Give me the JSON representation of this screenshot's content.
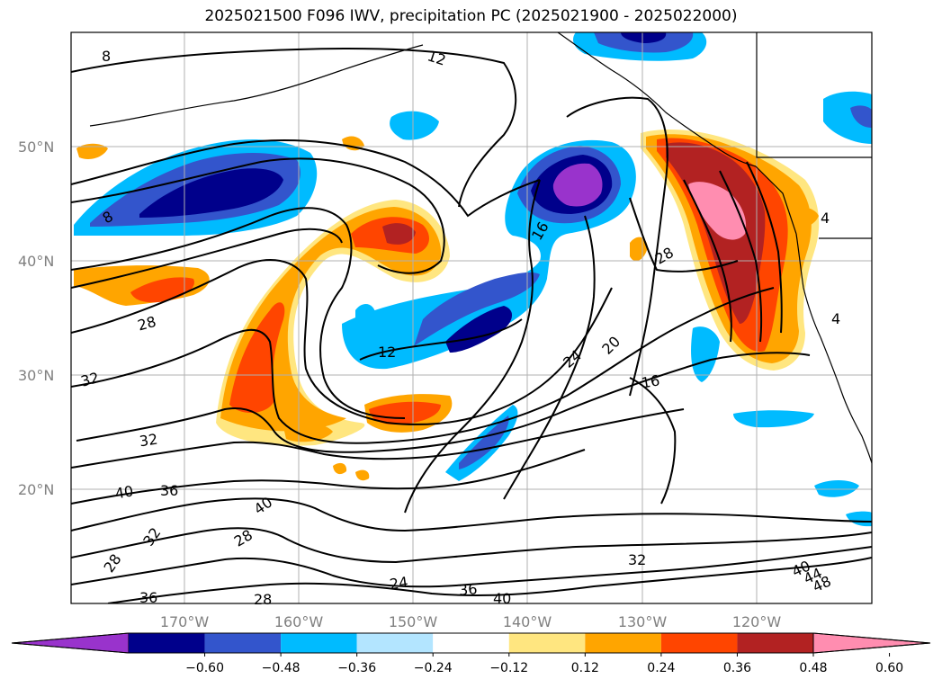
{
  "title": "2025021500 F096 IWV, precipitation PC (2025021900 - 2025022000)",
  "lat_labels": [
    "50°N",
    "40°N",
    "30°N",
    "20°N"
  ],
  "lon_labels": [
    "170°W",
    "160°W",
    "150°W",
    "140°W",
    "130°W",
    "120°W"
  ],
  "colorbar": {
    "ticks": [
      "−0.60",
      "−0.48",
      "−0.36",
      "−0.24",
      "−0.12",
      "0.12",
      "0.24",
      "0.36",
      "0.48",
      "0.60"
    ],
    "colors": [
      "#9933cc",
      "#00008b",
      "#3355cc",
      "#00bbff",
      "#b3e5ff",
      "#ffffff",
      "#ffe680",
      "#ffa500",
      "#ff4500",
      "#b22222",
      "#ff8db0"
    ]
  },
  "contour_labels": [
    "8",
    "12",
    "8",
    "12",
    "16",
    "28",
    "28",
    "24",
    "20",
    "16",
    "32",
    "32",
    "40",
    "36",
    "40",
    "28",
    "32",
    "28",
    "24",
    "36",
    "40",
    "32",
    "40",
    "44",
    "48",
    "36",
    "28",
    "4",
    "4"
  ],
  "palette": {
    "purple": "#9933cc",
    "navy": "#00008b",
    "royal": "#3355cc",
    "sky": "#00bbff",
    "pale_blue": "#b3e5ff",
    "pale_yellow": "#ffe680",
    "orange": "#ffa500",
    "red_orange": "#ff4500",
    "brick": "#b22222",
    "pink": "#ff8db0"
  }
}
